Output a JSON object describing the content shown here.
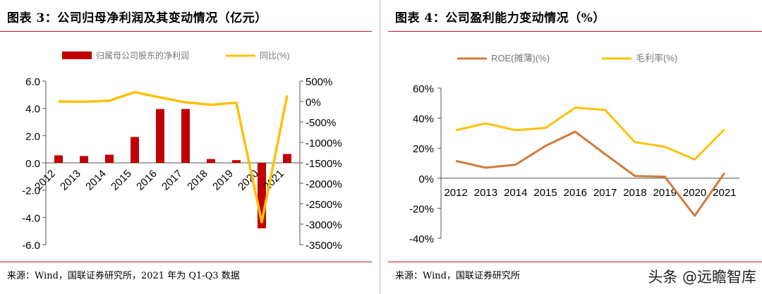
{
  "left_panel": {
    "title": "图表 3：公司归母净利润及其变动情况（亿元）",
    "source": "来源：Wind，国联证券研究所，2021 年为 Q1-Q3 数据"
  },
  "right_panel": {
    "title": "图表 4：公司盈利能力变动情况（%）",
    "source": "来源：Wind，国联证券研究所"
  },
  "watermark": "头条 @远瞻智库",
  "colors": {
    "bar": "#c00000",
    "line_gold": "#ffc000",
    "line_orange": "#d27b3a",
    "accent_red": "#c8102e"
  },
  "chart_data": [
    {
      "type": "bar",
      "categories": [
        "2012",
        "2013",
        "2014",
        "2015",
        "2016",
        "2017",
        "2018",
        "2019",
        "2020",
        "2021"
      ],
      "series": [
        {
          "name": "归属母公司股东的净利润",
          "type": "bar",
          "axis": "left",
          "values": [
            0.55,
            0.5,
            0.6,
            1.9,
            3.95,
            3.95,
            0.28,
            0.2,
            -4.8,
            0.65
          ]
        },
        {
          "name": "同比(%)",
          "type": "line",
          "axis": "right",
          "values": [
            0,
            -5,
            20,
            230,
            100,
            -20,
            -80,
            -30,
            -2950,
            150
          ]
        }
      ],
      "y_left": {
        "ylim": [
          -6,
          6
        ],
        "ticks": [
          "6.0",
          "4.0",
          "2.0",
          "0.0",
          "-2.0",
          "-4.0",
          "-6.0"
        ]
      },
      "y_right": {
        "ylim": [
          -3500,
          500
        ],
        "ticks": [
          "500%",
          "0%",
          "-500%",
          "-1000%",
          "-1500%",
          "-2000%",
          "-2500%",
          "-3000%",
          "-3500%"
        ]
      },
      "legend": "top"
    },
    {
      "type": "line",
      "categories": [
        "2012",
        "2013",
        "2014",
        "2015",
        "2016",
        "2017",
        "2018",
        "2019",
        "2020",
        "2021"
      ],
      "series": [
        {
          "name": "ROE(摊薄)(%)",
          "values": [
            11.5,
            7,
            9,
            21.5,
            31,
            16,
            1.5,
            1,
            -25,
            3.5
          ]
        },
        {
          "name": "毛利率(%)",
          "values": [
            32,
            36.5,
            32,
            33.5,
            47,
            45.5,
            24,
            21,
            12.5,
            32.5
          ]
        }
      ],
      "ylim": [
        -40,
        60
      ],
      "y_ticks": [
        "60%",
        "40%",
        "20%",
        "0%",
        "-20%",
        "-40%"
      ],
      "legend": "top"
    }
  ]
}
